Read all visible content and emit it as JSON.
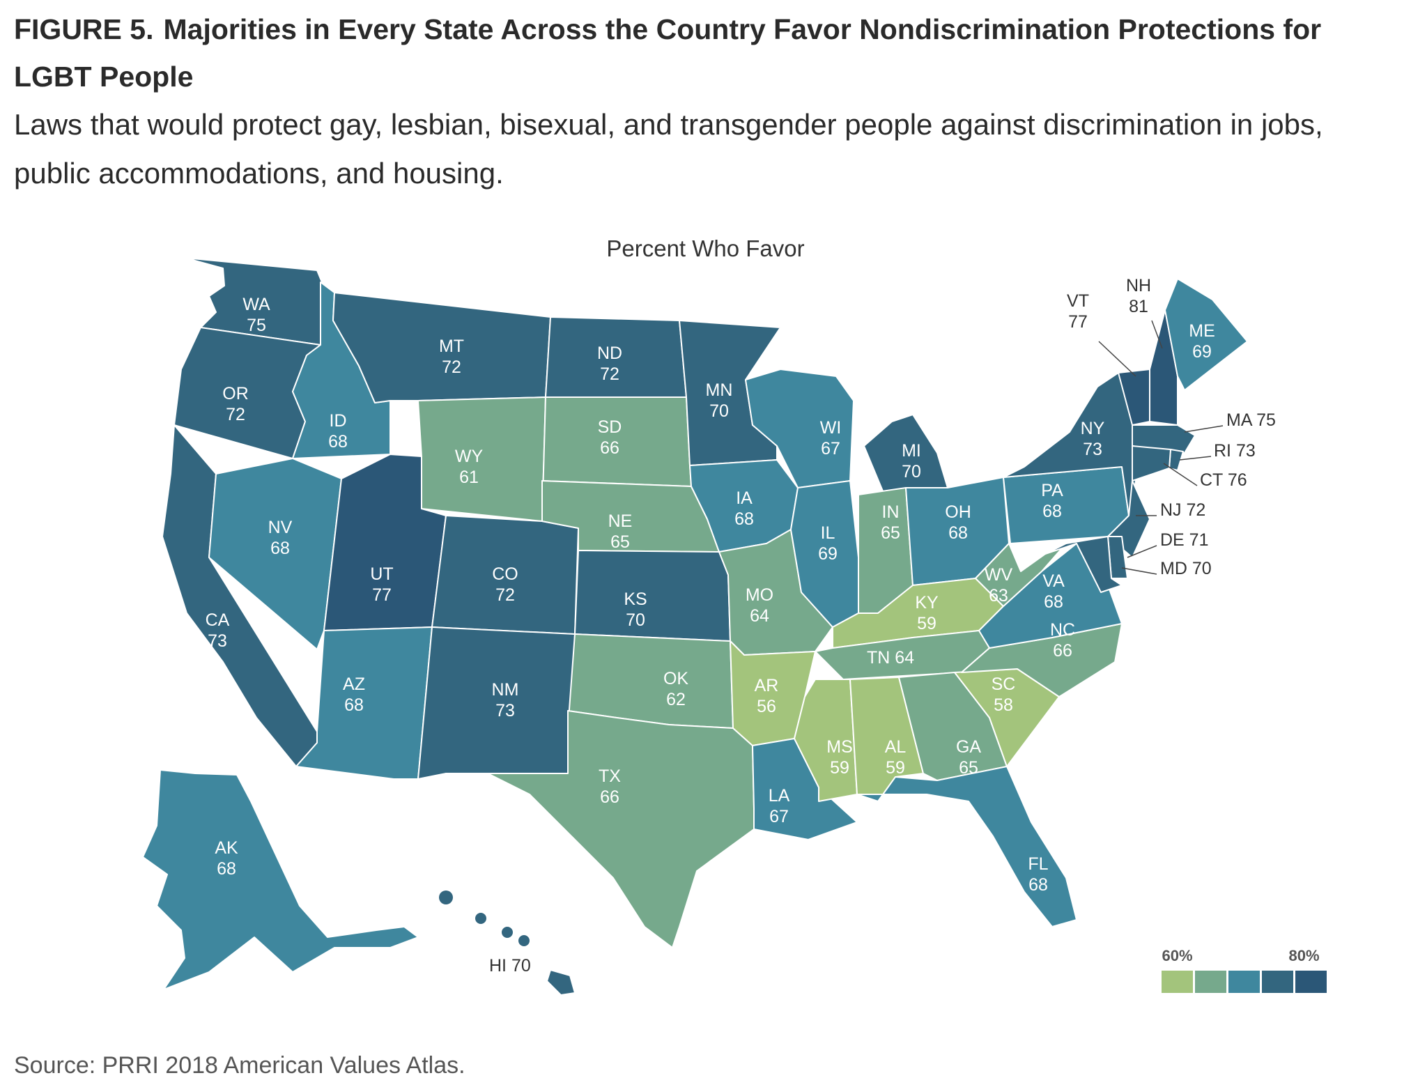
{
  "figure": {
    "label": "FIGURE 5.",
    "title": "Majorities in Every State Across the Country Favor Nondiscrimination Protections for LGBT People",
    "subtitle": "Laws that would protect gay, lesbian, bisexual, and transgender people against discrimination in jobs, public accommodations, and housing.",
    "map_title": "Percent Who Favor",
    "source": "Source: PRRI 2018 American Values Atlas."
  },
  "legend": {
    "colors": [
      "#a3c47c",
      "#76a98c",
      "#3f879e",
      "#33667f",
      "#2b5777"
    ],
    "labels": [
      "60%",
      "80%"
    ]
  },
  "states": [
    {
      "abbr": "WA",
      "value": 75
    },
    {
      "abbr": "OR",
      "value": 72
    },
    {
      "abbr": "CA",
      "value": 73
    },
    {
      "abbr": "ID",
      "value": 68
    },
    {
      "abbr": "NV",
      "value": 68
    },
    {
      "abbr": "UT",
      "value": 77
    },
    {
      "abbr": "AZ",
      "value": 68
    },
    {
      "abbr": "MT",
      "value": 72
    },
    {
      "abbr": "WY",
      "value": 61
    },
    {
      "abbr": "CO",
      "value": 72
    },
    {
      "abbr": "NM",
      "value": 73
    },
    {
      "abbr": "ND",
      "value": 72
    },
    {
      "abbr": "SD",
      "value": 66
    },
    {
      "abbr": "NE",
      "value": 65
    },
    {
      "abbr": "KS",
      "value": 70
    },
    {
      "abbr": "OK",
      "value": 62
    },
    {
      "abbr": "TX",
      "value": 66
    },
    {
      "abbr": "MN",
      "value": 70
    },
    {
      "abbr": "IA",
      "value": 68
    },
    {
      "abbr": "MO",
      "value": 64
    },
    {
      "abbr": "AR",
      "value": 56
    },
    {
      "abbr": "LA",
      "value": 67
    },
    {
      "abbr": "WI",
      "value": 67
    },
    {
      "abbr": "IL",
      "value": 69
    },
    {
      "abbr": "MI",
      "value": 70
    },
    {
      "abbr": "IN",
      "value": 65
    },
    {
      "abbr": "OH",
      "value": 68
    },
    {
      "abbr": "KY",
      "value": 59
    },
    {
      "abbr": "TN",
      "value": 64
    },
    {
      "abbr": "MS",
      "value": 59
    },
    {
      "abbr": "AL",
      "value": 59
    },
    {
      "abbr": "GA",
      "value": 65
    },
    {
      "abbr": "FL",
      "value": 68
    },
    {
      "abbr": "SC",
      "value": 58
    },
    {
      "abbr": "NC",
      "value": 66
    },
    {
      "abbr": "VA",
      "value": 68
    },
    {
      "abbr": "WV",
      "value": 63
    },
    {
      "abbr": "PA",
      "value": 68
    },
    {
      "abbr": "NY",
      "value": 73
    },
    {
      "abbr": "VT",
      "value": 77
    },
    {
      "abbr": "NH",
      "value": 81
    },
    {
      "abbr": "ME",
      "value": 69
    },
    {
      "abbr": "MA",
      "value": 75
    },
    {
      "abbr": "RI",
      "value": 73
    },
    {
      "abbr": "CT",
      "value": 76
    },
    {
      "abbr": "NJ",
      "value": 72
    },
    {
      "abbr": "DE",
      "value": 71
    },
    {
      "abbr": "MD",
      "value": 70
    },
    {
      "abbr": "AK",
      "value": 68
    },
    {
      "abbr": "HI",
      "value": 70
    }
  ]
}
